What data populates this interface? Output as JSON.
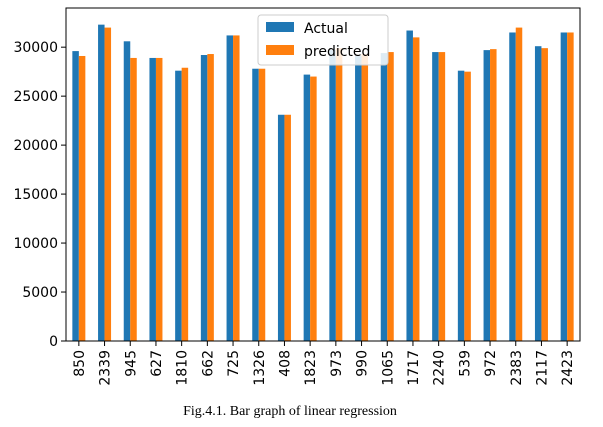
{
  "caption": "Fig.4.1. Bar graph of linear regression",
  "chart_data": {
    "type": "bar",
    "title": "",
    "xlabel": "",
    "ylabel": "",
    "categories": [
      "850",
      "2339",
      "945",
      "627",
      "1810",
      "662",
      "725",
      "1326",
      "408",
      "1823",
      "973",
      "990",
      "1065",
      "1717",
      "2240",
      "539",
      "972",
      "2383",
      "2117",
      "2423"
    ],
    "series": [
      {
        "name": "Actual",
        "color": "#1f77b4",
        "values": [
          29600,
          32300,
          30600,
          28900,
          27600,
          29200,
          31200,
          27800,
          23100,
          27200,
          29700,
          29100,
          29400,
          31700,
          29500,
          27600,
          29700,
          31500,
          30100,
          31500
        ]
      },
      {
        "name": "predicted",
        "color": "#ff7f0e",
        "values": [
          29100,
          32000,
          28900,
          28900,
          27900,
          29300,
          31200,
          27800,
          23100,
          27000,
          29900,
          29300,
          29500,
          31000,
          29500,
          27500,
          29800,
          32000,
          29900,
          31500
        ]
      }
    ],
    "ylim": [
      0,
      34000
    ],
    "yticks": [
      0,
      5000,
      10000,
      15000,
      20000,
      25000,
      30000
    ],
    "grid": false,
    "legend_position": "top-center"
  }
}
